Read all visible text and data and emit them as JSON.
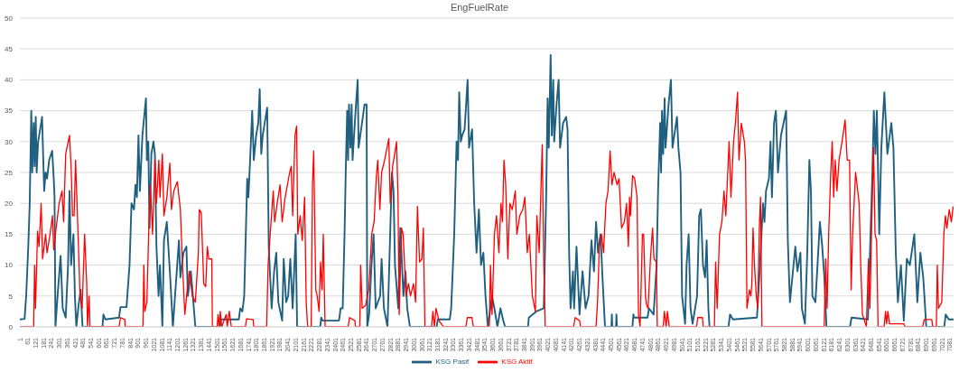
{
  "chart_data": {
    "type": "line",
    "title": "EngFuelRate",
    "grid": "y",
    "legend": "bottom",
    "xlim": [
      1,
      7110
    ],
    "xticks": [
      1,
      61,
      121,
      181,
      241,
      301,
      361,
      421,
      481,
      541,
      601,
      661,
      721,
      781,
      841,
      901,
      961,
      1021,
      1081,
      1141,
      1201,
      1261,
      1321,
      1381,
      1441,
      1501,
      1561,
      1621,
      1681,
      1741,
      1801,
      1861,
      1921,
      1981,
      2041,
      2101,
      2161,
      2221,
      2281,
      2341,
      2401,
      2461,
      2521,
      2581,
      2641,
      2701,
      2761,
      2821,
      2881,
      2941,
      3001,
      3061,
      3121,
      3181,
      3241,
      3301,
      3361,
      3421,
      3481,
      3541,
      3601,
      3661,
      3721,
      3781,
      3841,
      3901,
      3961,
      4021,
      4081,
      4141,
      4201,
      4261,
      4321,
      4381,
      4441,
      4501,
      4561,
      4621,
      4681,
      4741,
      4801,
      4861,
      4921,
      4981,
      5041,
      5101,
      5161,
      5221,
      5281,
      5341,
      5401,
      5461,
      5521,
      5581,
      5641,
      5701,
      5761,
      5821,
      5881,
      5941,
      6001,
      6061,
      6121,
      6181,
      6241,
      6301,
      6361,
      6421,
      6481,
      6541,
      6601,
      6661,
      6721,
      6781,
      6841,
      6901,
      6961,
      7021,
      7081
    ],
    "ylim": [
      0,
      50
    ],
    "yticks": [
      0,
      5,
      10,
      15,
      20,
      25,
      30,
      35,
      40,
      45,
      50
    ],
    "series": [
      {
        "name": "KSG Pasif",
        "color": "#1f5f80",
        "x": [
          1,
          37,
          49,
          65,
          76,
          88,
          95,
          106,
          113,
          122,
          129,
          140,
          163,
          170,
          186,
          197,
          208,
          224,
          247,
          259,
          265,
          272,
          288,
          311,
          327,
          350,
          368,
          379,
          391,
          409,
          420,
          431,
          448,
          464,
          478,
          630,
          637,
          653,
          756,
          767,
          813,
          836,
          851,
          870,
          881,
          892,
          904,
          915,
          934,
          961,
          968,
          979,
          988,
          1002,
          1018,
          1029,
          1041,
          1057,
          1068,
          1086,
          1098,
          1120,
          1143,
          1166,
          1212,
          1223,
          1246,
          1269,
          1280,
          1303,
          1337,
          1525,
          1531,
          1668,
          1679,
          1695,
          1709,
          1732,
          1741,
          1754,
          1770,
          1782,
          1800,
          1816,
          1827,
          1839,
          1850,
          1884,
          1896,
          1918,
          1937,
          1953,
          1969,
          1998,
          2010,
          2028,
          2044,
          2060,
          2078,
          2101,
          2112,
          2288,
          2295,
          2306,
          2431,
          2443,
          2459,
          2473,
          2482,
          2493,
          2500,
          2507,
          2518,
          2527,
          2534,
          2557,
          2573,
          2580,
          2625,
          2641,
          2646,
          2660,
          2678,
          2694,
          2710,
          2744,
          2755,
          2773,
          2800,
          2819,
          2834,
          2846,
          2857,
          2882,
          2898,
          2921,
          2937,
          2950,
          2971,
          3175,
          3183,
          3274,
          3285,
          3308,
          3326,
          3337,
          3346,
          3358,
          3369,
          3387,
          3410,
          3421,
          3444,
          3460,
          3478,
          3496,
          3512,
          3530,
          3546,
          3564,
          3596,
          3614,
          3637,
          3660,
          3682,
          3695,
          3870,
          3876,
          3933,
          3990,
          4008,
          4019,
          4028,
          4042,
          4051,
          4062,
          4069,
          4087,
          4103,
          4114,
          4137,
          4160,
          4171,
          4183,
          4194,
          4212,
          4221,
          4239,
          4262,
          4285,
          4308,
          4331,
          4353,
          4372,
          4388,
          4403,
          4422,
          4437,
          4456,
          4505,
          4508,
          4512,
          4540,
          4543,
          4547,
          4665,
          4672,
          4677,
          4780,
          4791,
          4826,
          4849,
          4860,
          4876,
          4883,
          4890,
          4899,
          4910,
          4917,
          4940,
          4958,
          4970,
          5004,
          5015,
          5031,
          5043,
          5066,
          5077,
          5093,
          5107,
          5123,
          5157,
          5173,
          5186,
          5202,
          5218,
          5230,
          5243,
          5252,
          5396,
          5408,
          5430,
          5613,
          5636,
          5659,
          5670,
          5682,
          5704,
          5716,
          5727,
          5743,
          5757,
          5773,
          5796,
          5835,
          5848,
          5864,
          5887,
          5905,
          5921,
          5944,
          5955,
          5978,
          5996,
          6012,
          6024,
          6035,
          6058,
          6074,
          6092,
          6110,
          6126,
          6142,
          6321,
          6333,
          6458,
          6492,
          6503,
          6515,
          6526,
          6544,
          6560,
          6583,
          6606,
          6636,
          6652,
          6670,
          6686,
          6709,
          6731,
          6754,
          6777,
          6811,
          6834,
          6857,
          6879,
          6902,
          7039,
          7050,
          7073,
          7110
        ],
        "values": [
          1.2,
          1.3,
          5,
          13,
          20,
          35,
          25,
          33,
          26,
          34,
          25,
          30,
          33,
          34,
          22,
          25,
          24,
          27,
          28.5,
          24,
          21,
          0,
          5,
          11.5,
          3,
          1.5,
          10,
          22,
          10,
          15,
          5,
          0,
          3.5,
          6,
          0,
          0,
          2,
          1.2,
          1.5,
          3.2,
          3.2,
          10,
          20,
          19,
          23,
          21,
          31,
          22,
          31,
          37,
          27,
          30,
          16,
          28,
          30,
          28,
          13,
          5,
          10,
          0,
          14,
          17,
          9,
          0,
          14,
          8,
          12,
          13,
          5,
          9,
          0,
          0,
          1.2,
          1.2,
          3,
          2.5,
          5,
          24,
          21,
          27,
          35,
          27,
          31,
          33,
          38.5,
          28,
          31,
          35.5,
          13,
          3,
          9,
          12,
          4,
          1,
          11,
          4,
          5,
          11,
          3,
          15,
          0,
          0,
          1.5,
          1,
          1,
          3,
          3,
          15,
          25,
          35,
          27,
          36,
          29,
          36,
          27,
          35,
          40,
          29,
          36,
          36,
          0,
          2,
          10,
          15,
          3,
          5,
          11,
          3,
          0,
          14,
          25,
          22,
          10,
          3,
          16,
          5,
          9,
          3,
          0,
          0,
          1.2,
          1.2,
          3,
          15,
          30,
          27,
          38,
          30,
          31,
          32,
          40,
          29,
          32,
          20,
          12,
          19,
          10,
          12,
          5,
          0,
          5,
          3,
          0,
          3,
          1,
          0,
          0,
          1.5,
          2.5,
          3,
          21,
          37,
          29,
          44,
          31,
          40,
          30,
          36,
          40,
          29,
          33,
          34,
          32,
          12,
          3,
          9,
          3,
          13,
          2,
          9,
          3,
          5,
          14,
          9,
          17,
          12,
          15,
          8,
          0,
          0,
          2,
          0,
          0,
          2,
          0,
          0,
          2,
          1.5,
          1.5,
          3,
          2,
          10,
          22,
          33,
          25,
          35,
          28,
          37,
          29,
          36,
          40,
          29,
          34,
          29,
          25,
          5,
          0.5,
          10,
          15,
          3,
          0.5,
          5,
          18,
          19,
          10,
          8,
          14,
          3,
          0,
          0,
          2,
          1.2,
          1.5,
          10,
          20,
          17,
          22,
          24,
          30,
          21,
          33,
          35,
          25,
          31,
          35,
          14,
          4,
          9,
          13,
          9,
          12,
          3,
          0.5,
          12,
          27,
          22,
          5,
          4,
          10,
          17,
          13,
          8,
          0,
          0,
          1.5,
          1.2,
          25,
          35,
          28,
          35,
          15,
          29,
          38,
          28,
          33,
          29,
          12,
          4,
          10,
          1,
          11,
          10,
          15,
          4,
          12,
          8,
          0,
          0,
          2,
          1.2,
          1.2
        ]
      },
      {
        "name": "KSG Aktif",
        "color": "#ff0000",
        "x": [
          1,
          106,
          113,
          120,
          136,
          147,
          163,
          174,
          197,
          208,
          231,
          249,
          259,
          277,
          300,
          322,
          334,
          350,
          379,
          391,
          402,
          414,
          425,
          441,
          459,
          475,
          494,
          510,
          516,
          528,
          535,
          756,
          767,
          800,
          803,
          938,
          945,
          952,
          968,
          984,
          995,
          1011,
          1029,
          1041,
          1059,
          1068,
          1086,
          1098,
          1120,
          1143,
          1155,
          1173,
          1200,
          1223,
          1239,
          1257,
          1275,
          1291,
          1314,
          1337,
          1360,
          1367,
          1382,
          1401,
          1416,
          1428,
          1439,
          1462,
          1467,
          1503,
          1510,
          1518,
          1527,
          1538,
          1572,
          1580,
          1595,
          1611,
          1718,
          1727,
          1777,
          1782,
          1880,
          1891,
          1907,
          1930,
          1941,
          1960,
          1982,
          1998,
          2021,
          2055,
          2067,
          2078,
          2096,
          2108,
          2117,
          2135,
          2151,
          2169,
          2181,
          2192,
          2219,
          2229,
          2238,
          2254,
          2265,
          2279,
          2290,
          2302,
          2311,
          2325,
          2500,
          2511,
          2552,
          2556,
          2589,
          2596,
          2607,
          2634,
          2657,
          2680,
          2698,
          2714,
          2726,
          2742,
          2755,
          2778,
          2810,
          2821,
          2839,
          2855,
          2869,
          2880,
          2889,
          2907,
          2919,
          2941,
          2960,
          2975,
          2998,
          3014,
          3028,
          3044,
          3062,
          3073,
          3085,
          3135,
          3146,
          3158,
          3169,
          3192,
          3226,
          3397,
          3408,
          3443,
          3454,
          3575,
          3584,
          3596,
          3614,
          3630,
          3648,
          3664,
          3675,
          3687,
          3700,
          3716,
          3732,
          3750,
          3773,
          3785,
          3807,
          3830,
          3846,
          3864,
          3880,
          3903,
          3926,
          3937,
          3955,
          3978,
          3990,
          4001,
          4217,
          4229,
          4263,
          4270,
          4388,
          4399,
          4415,
          4429,
          4445,
          4463,
          4479,
          4495,
          4509,
          4525,
          4548,
          4563,
          4582,
          4604,
          4620,
          4634,
          4643,
          4650,
          4666,
          4682,
          4700,
          4711,
          4723,
          4741,
          4750,
          4764,
          4773,
          4784,
          4802,
          4818,
          4829,
          4847,
          4854,
          4899,
          4908,
          4922,
          4931,
          4945,
          5153,
          5162,
          5198,
          5203,
          5289,
          5298,
          5310,
          5328,
          5346,
          5362,
          5376,
          5401,
          5415,
          5435,
          5449,
          5465,
          5476,
          5494,
          5517,
          5526,
          5537,
          5556,
          5567,
          5574,
          5583,
          5594,
          5608,
          5619,
          5631,
          5640,
          5651,
          6125,
          6136,
          6147,
          6159,
          6175,
          6186,
          6197,
          6209,
          6222,
          6238,
          6261,
          6284,
          6300,
          6318,
          6330,
          6341,
          6364,
          6375,
          6391,
          6403,
          6416,
          6432,
          6446,
          6462,
          6473,
          6485,
          6501,
          6512,
          6524,
          6535,
          6581,
          6592,
          6600,
          6610,
          6622,
          6731,
          6740,
          6875,
          6887,
          6944,
          6951,
          6979,
          6986,
          6995,
          7020,
          7036,
          7048,
          7059,
          7077,
          7093,
          7107
        ],
        "values": [
          0,
          0,
          10,
          3,
          15.5,
          13,
          20,
          11,
          15,
          12,
          15,
          18,
          12.5,
          16,
          20,
          22,
          17,
          28,
          31,
          26,
          18,
          18,
          27,
          17,
          5,
          3,
          15,
          7,
          0,
          5,
          0,
          0,
          1.5,
          1.2,
          0,
          0,
          10,
          2.5,
          4,
          17,
          23,
          15,
          27,
          20,
          27,
          21,
          28,
          18,
          21,
          26.5,
          19,
          22,
          23.5,
          19,
          10,
          2,
          6,
          9,
          5,
          4,
          12,
          19,
          18.5,
          7,
          6.5,
          13,
          11,
          11,
          0,
          0,
          2,
          0,
          2.5,
          0,
          2,
          0,
          2.5,
          0,
          0,
          1.3,
          1.2,
          0,
          0,
          10,
          15,
          22,
          17,
          20,
          23,
          17,
          21,
          25,
          26,
          18,
          31,
          32.5,
          15,
          18,
          14,
          21,
          4,
          0,
          0,
          23,
          28.5,
          6,
          5,
          2.5,
          10.5,
          6,
          15,
          0,
          0,
          1.5,
          1,
          0,
          0,
          10,
          3,
          3.5,
          6,
          15,
          17,
          24,
          27,
          19,
          25,
          27,
          30.5,
          20,
          26,
          28,
          30,
          21,
          2,
          16,
          15,
          5,
          7,
          5,
          7,
          4,
          19.5,
          10.5,
          11,
          16,
          0,
          0,
          2.5,
          0,
          3,
          1,
          0,
          0,
          1.5,
          1.5,
          0,
          0,
          10,
          2,
          15,
          18,
          12,
          20,
          17,
          27,
          23,
          11,
          20,
          19,
          22,
          15,
          18,
          19,
          21,
          12,
          15,
          5,
          2.5,
          18,
          12,
          29.5,
          10,
          0,
          0,
          1.5,
          1,
          0,
          0,
          4,
          14,
          15,
          12,
          20,
          22,
          28.5,
          23,
          25,
          23,
          24,
          16,
          17,
          20,
          13,
          21,
          18,
          24.5,
          24,
          21,
          2,
          0,
          15,
          15,
          5,
          3.5,
          3,
          11,
          16,
          11,
          10.5,
          0,
          0,
          2.5,
          0,
          2.5,
          0,
          0,
          1.5,
          1.5,
          0,
          0,
          10.5,
          3,
          15,
          17,
          22,
          18,
          30,
          21,
          30,
          33,
          38,
          27,
          33,
          30,
          27,
          3,
          6,
          5,
          7,
          16,
          10,
          5,
          3,
          16,
          21,
          0,
          0,
          11,
          3,
          15,
          25,
          30,
          21,
          27,
          22,
          27,
          30,
          33.5,
          27,
          27,
          6,
          15,
          25,
          23,
          20,
          10,
          2,
          1,
          0,
          11,
          3,
          15,
          29,
          15,
          14,
          0,
          0,
          2.5,
          0.5,
          2.5,
          0.5,
          0.5,
          0,
          0,
          1.2,
          1.2,
          0,
          0,
          10,
          3,
          4,
          15,
          18,
          16,
          19,
          17,
          19.5
        ]
      }
    ]
  }
}
